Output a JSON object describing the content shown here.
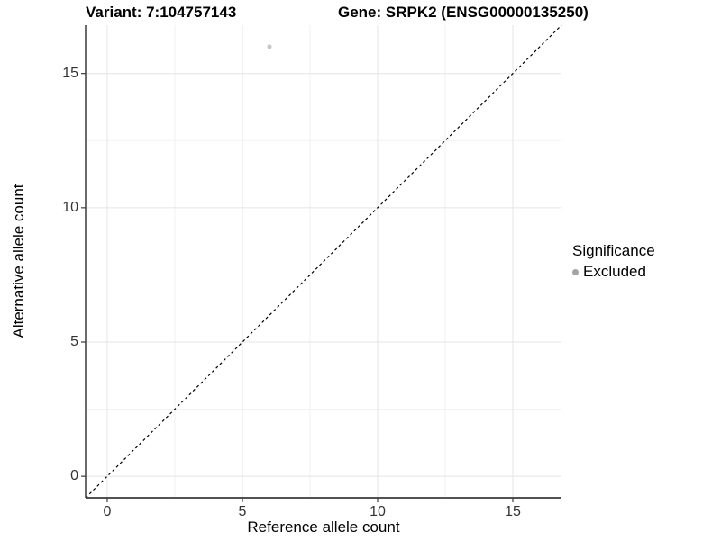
{
  "figure": {
    "title_variant": "Variant: 7:104757143",
    "title_gene": "Gene: SRPK2 (ENSG00000135250)"
  },
  "legend": {
    "title": "Significance",
    "items": [
      {
        "label": "Excluded",
        "marker_color": "#a3a3a3"
      }
    ]
  },
  "chart_data": {
    "type": "scatter",
    "title": "Variant: 7:104757143 / Gene: SRPK2 (ENSG00000135250)",
    "xlabel": "Reference allele count",
    "ylabel": "Alternative allele count",
    "xlim": [
      -0.8,
      16.8
    ],
    "ylim": [
      -0.8,
      16.8
    ],
    "x_ticks": [
      0,
      5,
      10,
      15
    ],
    "y_ticks": [
      0,
      5,
      10,
      15
    ],
    "x_minor_ticks": [
      2.5,
      7.5,
      12.5
    ],
    "y_minor_ticks": [
      2.5,
      7.5,
      12.5
    ],
    "grid": "major+minor",
    "legend_position": "right",
    "series": [
      {
        "name": "Excluded",
        "color": "#c6c6c6",
        "points": [
          {
            "x": 6,
            "y": 16
          }
        ]
      }
    ],
    "reference_line": {
      "shape": "abline",
      "slope": 1,
      "intercept": 0,
      "style": "dashed",
      "color": "#000000"
    }
  },
  "colors": {
    "background": "#ffffff",
    "grid_major": "#e4e4e4",
    "grid_minor": "#f1f1f1",
    "axis": "#3a3a3a",
    "tick_text": "#333333",
    "title_text": "#000000"
  }
}
